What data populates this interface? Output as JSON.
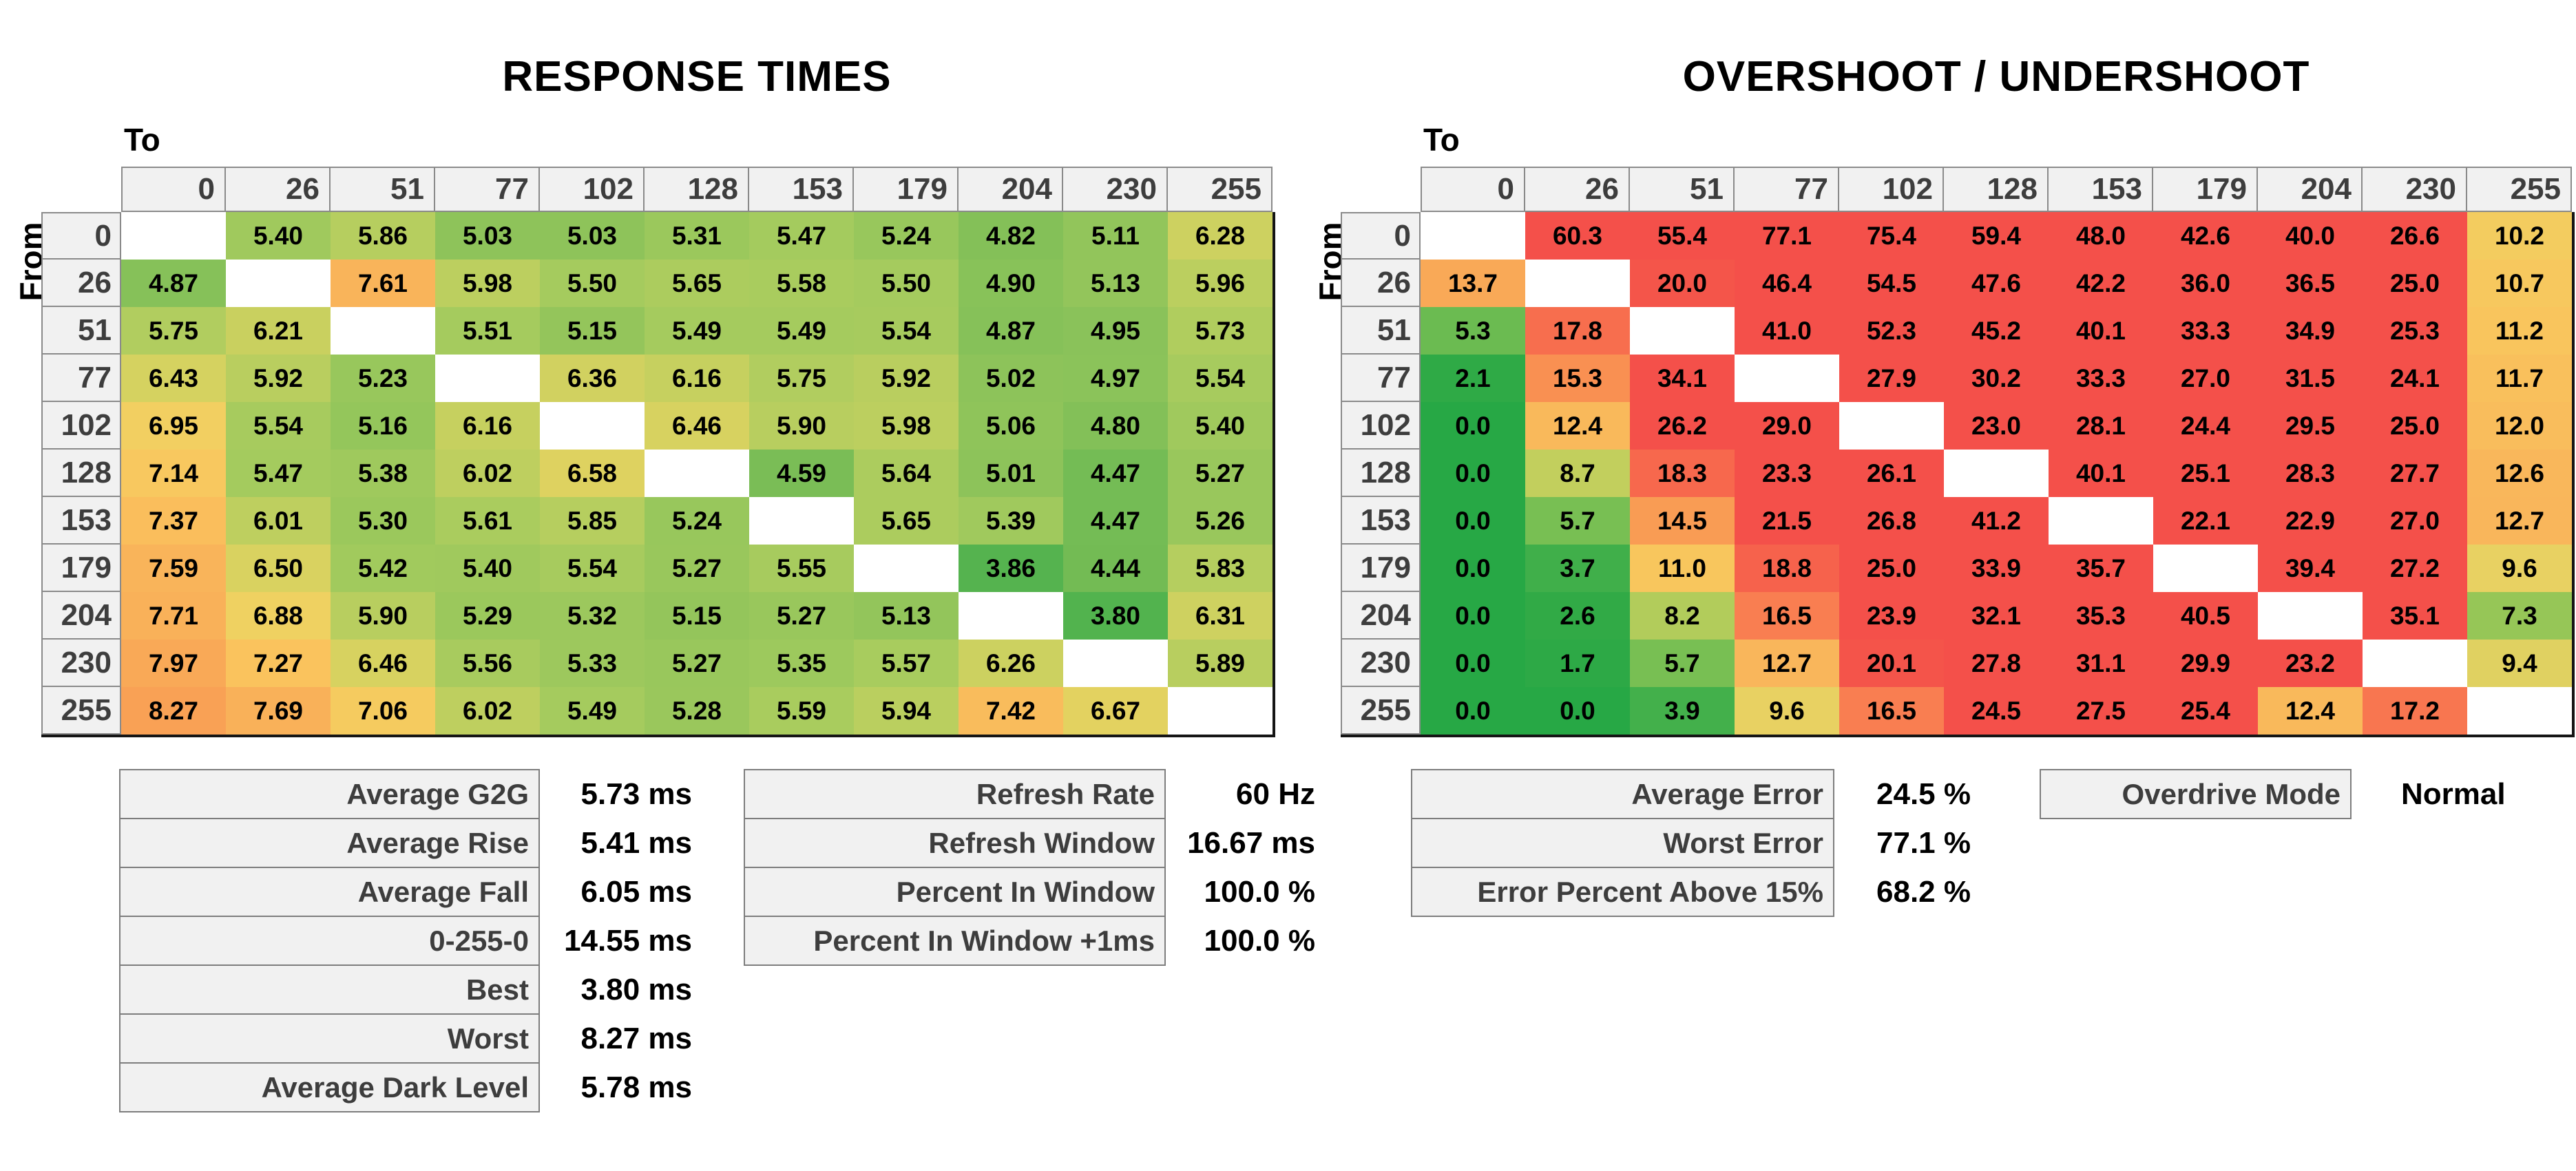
{
  "chart_data": [
    {
      "type": "heatmap",
      "title": "RESPONSE TIMES",
      "unit": "ms",
      "decimals": 2,
      "x_axis_label": "To",
      "y_axis_label": "From",
      "legend_position": "none",
      "grid": false,
      "x_categories": [
        0,
        26,
        51,
        77,
        102,
        128,
        153,
        179,
        204,
        230,
        255
      ],
      "y_categories": [
        0,
        26,
        51,
        77,
        102,
        128,
        153,
        179,
        204,
        230,
        255
      ],
      "rows": [
        [
          null,
          5.4,
          5.86,
          5.03,
          5.03,
          5.31,
          5.47,
          5.24,
          4.82,
          5.11,
          6.28
        ],
        [
          4.87,
          null,
          7.61,
          5.98,
          5.5,
          5.65,
          5.58,
          5.5,
          4.9,
          5.13,
          5.96
        ],
        [
          5.75,
          6.21,
          null,
          5.51,
          5.15,
          5.49,
          5.49,
          5.54,
          4.87,
          4.95,
          5.73
        ],
        [
          6.43,
          5.92,
          5.23,
          null,
          6.36,
          6.16,
          5.75,
          5.92,
          5.02,
          4.97,
          5.54
        ],
        [
          6.95,
          5.54,
          5.16,
          6.16,
          null,
          6.46,
          5.9,
          5.98,
          5.06,
          4.8,
          5.4
        ],
        [
          7.14,
          5.47,
          5.38,
          6.02,
          6.58,
          null,
          4.59,
          5.64,
          5.01,
          4.47,
          5.27
        ],
        [
          7.37,
          6.01,
          5.3,
          5.61,
          5.85,
          5.24,
          null,
          5.65,
          5.39,
          4.47,
          5.26
        ],
        [
          7.59,
          6.5,
          5.42,
          5.4,
          5.54,
          5.27,
          5.55,
          null,
          3.86,
          4.44,
          5.83
        ],
        [
          7.71,
          6.88,
          5.9,
          5.29,
          5.32,
          5.15,
          5.27,
          5.13,
          null,
          3.8,
          6.31
        ],
        [
          7.97,
          7.27,
          6.46,
          5.56,
          5.33,
          5.27,
          5.35,
          5.57,
          6.26,
          null,
          5.89
        ],
        [
          8.27,
          7.69,
          7.06,
          6.02,
          5.49,
          5.28,
          5.59,
          5.94,
          7.42,
          6.67,
          null
        ]
      ],
      "colormap_stops": [
        [
          3.75,
          "#4fb24e"
        ],
        [
          4.5,
          "#76bc55"
        ],
        [
          5.0,
          "#8cc35a"
        ],
        [
          5.5,
          "#a5cb5e"
        ],
        [
          6.0,
          "#bdcf5f"
        ],
        [
          6.5,
          "#d9d260"
        ],
        [
          6.9,
          "#f0d161"
        ],
        [
          7.2,
          "#fac65e"
        ],
        [
          7.6,
          "#f9b45a"
        ],
        [
          8.3,
          "#f9a055"
        ]
      ]
    },
    {
      "type": "heatmap",
      "title": "OVERSHOOT / UNDERSHOOT",
      "unit": "%",
      "decimals": 1,
      "x_axis_label": "To",
      "y_axis_label": "From",
      "legend_position": "none",
      "grid": false,
      "x_categories": [
        0,
        26,
        51,
        77,
        102,
        128,
        153,
        179,
        204,
        230,
        255
      ],
      "y_categories": [
        0,
        26,
        51,
        77,
        102,
        128,
        153,
        179,
        204,
        230,
        255
      ],
      "rows": [
        [
          null,
          60.3,
          55.4,
          77.1,
          75.4,
          59.4,
          48.0,
          42.6,
          40.0,
          26.6,
          10.2
        ],
        [
          13.7,
          null,
          20.0,
          46.4,
          54.5,
          47.6,
          42.2,
          36.0,
          36.5,
          25.0,
          10.7
        ],
        [
          5.3,
          17.8,
          null,
          41.0,
          52.3,
          45.2,
          40.1,
          33.3,
          34.9,
          25.3,
          11.2
        ],
        [
          2.1,
          15.3,
          34.1,
          null,
          27.9,
          30.2,
          33.3,
          27.0,
          31.5,
          24.1,
          11.7
        ],
        [
          0.0,
          12.4,
          26.2,
          29.0,
          null,
          23.0,
          28.1,
          24.4,
          29.5,
          25.0,
          12.0
        ],
        [
          0.0,
          8.7,
          18.3,
          23.3,
          26.1,
          null,
          40.1,
          25.1,
          28.3,
          27.7,
          12.6
        ],
        [
          0.0,
          5.7,
          14.5,
          21.5,
          26.8,
          41.2,
          null,
          22.1,
          22.9,
          27.0,
          12.7
        ],
        [
          0.0,
          3.7,
          11.0,
          18.8,
          25.0,
          33.9,
          35.7,
          null,
          39.4,
          27.2,
          9.6
        ],
        [
          0.0,
          2.6,
          8.2,
          16.5,
          23.9,
          32.1,
          35.3,
          40.5,
          null,
          35.1,
          7.3
        ],
        [
          0.0,
          1.7,
          5.7,
          12.7,
          20.1,
          27.8,
          31.1,
          29.9,
          23.2,
          null,
          9.4
        ],
        [
          0.0,
          0.0,
          3.9,
          9.6,
          16.5,
          24.5,
          27.5,
          25.4,
          12.4,
          17.2,
          null
        ]
      ],
      "colormap_stops": [
        [
          0,
          "#27a845"
        ],
        [
          2.5,
          "#30aa46"
        ],
        [
          4.2,
          "#47b14c"
        ],
        [
          5.7,
          "#78bf53"
        ],
        [
          7.3,
          "#96c657"
        ],
        [
          8.7,
          "#c2cf5d"
        ],
        [
          9.6,
          "#e8d162"
        ],
        [
          10.3,
          "#f5cb5f"
        ],
        [
          11.2,
          "#f9c55d"
        ],
        [
          12.7,
          "#f9b65b"
        ],
        [
          13.7,
          "#f9a957"
        ],
        [
          14.8,
          "#f99753"
        ],
        [
          16.5,
          "#f97e51"
        ],
        [
          18.0,
          "#f76c4e"
        ],
        [
          19.3,
          "#f55c4b"
        ],
        [
          20.5,
          "#f4504a"
        ]
      ]
    }
  ],
  "stats_panels": [
    {
      "id": "response-stats",
      "rows": [
        {
          "label": "Average G2G",
          "value": "5.73",
          "unit": "ms"
        },
        {
          "label": "Average Rise",
          "value": "5.41",
          "unit": "ms"
        },
        {
          "label": "Average Fall",
          "value": "6.05",
          "unit": "ms"
        },
        {
          "label": "0-255-0",
          "value": "14.55",
          "unit": "ms"
        },
        {
          "label": "Best",
          "value": "3.80",
          "unit": "ms"
        },
        {
          "label": "Worst",
          "value": "8.27",
          "unit": "ms"
        },
        {
          "label": "Average Dark Level",
          "value": "5.78",
          "unit": "ms"
        }
      ]
    },
    {
      "id": "refresh-stats",
      "rows": [
        {
          "label": "Refresh Rate",
          "value": "60",
          "unit": "Hz"
        },
        {
          "label": "Refresh Window",
          "value": "16.67",
          "unit": "ms"
        },
        {
          "label": "Percent In Window",
          "value": "100.0",
          "unit": "%"
        },
        {
          "label": "Percent In Window +1ms",
          "value": "100.0",
          "unit": "%"
        }
      ]
    },
    {
      "id": "error-stats",
      "rows": [
        {
          "label": "Average Error",
          "value": "24.5",
          "unit": "%"
        },
        {
          "label": "Worst Error",
          "value": "77.1",
          "unit": "%"
        },
        {
          "label": "Error Percent Above 15%",
          "value": "68.2",
          "unit": "%"
        }
      ]
    },
    {
      "id": "overdrive-mode",
      "rows": [
        {
          "label": "Overdrive Mode",
          "value": "Normal",
          "unit": ""
        }
      ]
    }
  ],
  "colors": {
    "background": "#ffffff",
    "header_bg": "#f1f1f1",
    "header_border": "#8a8a8a",
    "header_text": "#3d3d3d",
    "cell_text": "#000000",
    "diagonal_bg": "#ffffff",
    "table_outer_border": "#151515",
    "stat_box_bg": "#f1f1f1",
    "stat_box_border": "#7d7d7d",
    "stat_label_text": "#3d3d3d",
    "stat_value_text": "#000000",
    "heatmap_red": "#f4504a",
    "heatmap_green": "#27a845",
    "heatmap_yellow": "#e8d162",
    "heatmap_orange": "#f9a957"
  }
}
